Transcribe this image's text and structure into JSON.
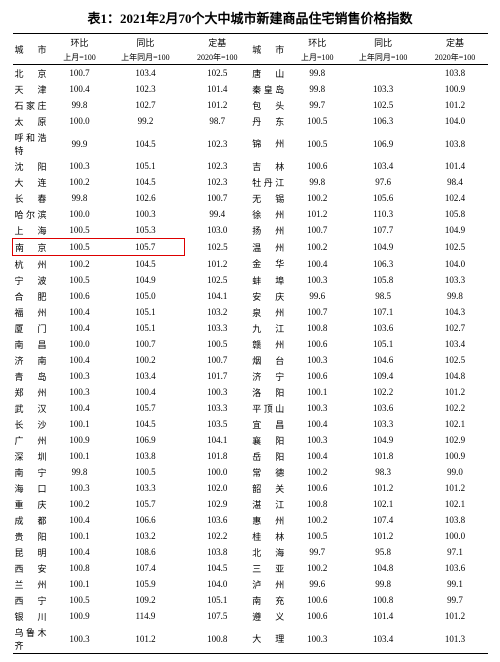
{
  "title": "表1：2021年2月70个大中城市新建商品住宅销售价格指数",
  "headers": {
    "city": "城市",
    "mom": "环比",
    "mom_sub": "上月=100",
    "yoy": "同比",
    "yoy_sub": "上年同月=100",
    "base": "定基",
    "base_sub": "2020年=100"
  },
  "highlight_city": "南京",
  "colors": {
    "highlight": "#d00",
    "text": "#000",
    "bg": "#ffffff"
  },
  "font": {
    "family": "SimSun",
    "title_size": 13,
    "body_size": 9
  },
  "rows": [
    {
      "l": {
        "c": "北京",
        "m": "100.7",
        "y": "103.4",
        "b": "102.5"
      },
      "r": {
        "c": "唐山",
        "m": "99.8",
        "y": "",
        "b": "103.8"
      }
    },
    {
      "l": {
        "c": "天津",
        "m": "100.4",
        "y": "102.3",
        "b": "101.4"
      },
      "r": {
        "c": "秦皇岛",
        "m": "99.8",
        "y": "103.3",
        "b": "100.9"
      }
    },
    {
      "l": {
        "c": "石家庄",
        "m": "99.8",
        "y": "102.7",
        "b": "101.2"
      },
      "r": {
        "c": "包头",
        "m": "99.7",
        "y": "102.5",
        "b": "101.2"
      }
    },
    {
      "l": {
        "c": "太原",
        "m": "100.0",
        "y": "99.2",
        "b": "98.7"
      },
      "r": {
        "c": "丹东",
        "m": "100.5",
        "y": "106.3",
        "b": "104.0"
      }
    },
    {
      "l": {
        "c": "呼和浩特",
        "m": "99.9",
        "y": "104.5",
        "b": "102.3"
      },
      "r": {
        "c": "锦州",
        "m": "100.5",
        "y": "106.9",
        "b": "103.8"
      }
    },
    {
      "l": {
        "c": "沈阳",
        "m": "100.3",
        "y": "105.1",
        "b": "102.3"
      },
      "r": {
        "c": "吉林",
        "m": "100.6",
        "y": "103.4",
        "b": "101.4"
      }
    },
    {
      "l": {
        "c": "大连",
        "m": "100.2",
        "y": "104.5",
        "b": "102.3"
      },
      "r": {
        "c": "牡丹江",
        "m": "99.8",
        "y": "97.6",
        "b": "98.4"
      }
    },
    {
      "l": {
        "c": "长春",
        "m": "99.8",
        "y": "102.6",
        "b": "100.7"
      },
      "r": {
        "c": "无锡",
        "m": "100.2",
        "y": "105.6",
        "b": "102.4"
      }
    },
    {
      "l": {
        "c": "哈尔滨",
        "m": "100.0",
        "y": "100.3",
        "b": "99.4"
      },
      "r": {
        "c": "徐州",
        "m": "101.2",
        "y": "110.3",
        "b": "105.8"
      }
    },
    {
      "l": {
        "c": "上海",
        "m": "100.5",
        "y": "105.3",
        "b": "103.0"
      },
      "r": {
        "c": "扬州",
        "m": "100.7",
        "y": "107.7",
        "b": "104.9"
      }
    },
    {
      "l": {
        "c": "南京",
        "m": "100.5",
        "y": "105.7",
        "b": "102.5"
      },
      "r": {
        "c": "温州",
        "m": "100.2",
        "y": "104.9",
        "b": "102.5"
      }
    },
    {
      "l": {
        "c": "杭州",
        "m": "100.2",
        "y": "104.5",
        "b": "101.2"
      },
      "r": {
        "c": "金华",
        "m": "100.4",
        "y": "106.3",
        "b": "104.0"
      }
    },
    {
      "l": {
        "c": "宁波",
        "m": "100.5",
        "y": "104.9",
        "b": "102.5"
      },
      "r": {
        "c": "蚌埠",
        "m": "100.3",
        "y": "105.8",
        "b": "103.3"
      }
    },
    {
      "l": {
        "c": "合肥",
        "m": "100.6",
        "y": "105.0",
        "b": "104.1"
      },
      "r": {
        "c": "安庆",
        "m": "99.6",
        "y": "98.5",
        "b": "99.8"
      }
    },
    {
      "l": {
        "c": "福州",
        "m": "100.4",
        "y": "105.1",
        "b": "103.2"
      },
      "r": {
        "c": "泉州",
        "m": "100.7",
        "y": "107.1",
        "b": "104.3"
      }
    },
    {
      "l": {
        "c": "厦门",
        "m": "100.4",
        "y": "105.1",
        "b": "103.3"
      },
      "r": {
        "c": "九江",
        "m": "100.8",
        "y": "103.6",
        "b": "102.7"
      }
    },
    {
      "l": {
        "c": "南昌",
        "m": "100.0",
        "y": "100.7",
        "b": "100.5"
      },
      "r": {
        "c": "赣州",
        "m": "100.6",
        "y": "105.1",
        "b": "103.4"
      }
    },
    {
      "l": {
        "c": "济南",
        "m": "100.4",
        "y": "100.2",
        "b": "100.7"
      },
      "r": {
        "c": "烟台",
        "m": "100.3",
        "y": "104.6",
        "b": "102.5"
      }
    },
    {
      "l": {
        "c": "青岛",
        "m": "100.3",
        "y": "103.4",
        "b": "101.7"
      },
      "r": {
        "c": "济宁",
        "m": "100.6",
        "y": "109.4",
        "b": "104.8"
      }
    },
    {
      "l": {
        "c": "郑州",
        "m": "100.3",
        "y": "100.4",
        "b": "100.3"
      },
      "r": {
        "c": "洛阳",
        "m": "100.1",
        "y": "102.2",
        "b": "101.2"
      }
    },
    {
      "l": {
        "c": "武汉",
        "m": "100.4",
        "y": "105.7",
        "b": "103.3"
      },
      "r": {
        "c": "平顶山",
        "m": "100.3",
        "y": "103.6",
        "b": "102.2"
      }
    },
    {
      "l": {
        "c": "长沙",
        "m": "100.1",
        "y": "104.5",
        "b": "103.5"
      },
      "r": {
        "c": "宜昌",
        "m": "100.4",
        "y": "103.3",
        "b": "102.1"
      }
    },
    {
      "l": {
        "c": "广州",
        "m": "100.9",
        "y": "106.9",
        "b": "104.1"
      },
      "r": {
        "c": "襄阳",
        "m": "100.3",
        "y": "104.9",
        "b": "102.9"
      }
    },
    {
      "l": {
        "c": "深圳",
        "m": "100.1",
        "y": "103.8",
        "b": "101.8"
      },
      "r": {
        "c": "岳阳",
        "m": "100.4",
        "y": "101.8",
        "b": "100.9"
      }
    },
    {
      "l": {
        "c": "南宁",
        "m": "99.8",
        "y": "100.5",
        "b": "100.0"
      },
      "r": {
        "c": "常德",
        "m": "100.2",
        "y": "98.3",
        "b": "99.0"
      }
    },
    {
      "l": {
        "c": "海口",
        "m": "100.3",
        "y": "103.3",
        "b": "102.0"
      },
      "r": {
        "c": "韶关",
        "m": "100.6",
        "y": "101.2",
        "b": "101.2"
      }
    },
    {
      "l": {
        "c": "重庆",
        "m": "100.2",
        "y": "105.7",
        "b": "102.9"
      },
      "r": {
        "c": "湛江",
        "m": "100.8",
        "y": "102.1",
        "b": "102.1"
      }
    },
    {
      "l": {
        "c": "成都",
        "m": "100.4",
        "y": "106.6",
        "b": "103.6"
      },
      "r": {
        "c": "惠州",
        "m": "100.2",
        "y": "107.4",
        "b": "103.8"
      }
    },
    {
      "l": {
        "c": "贵阳",
        "m": "100.1",
        "y": "103.2",
        "b": "102.2"
      },
      "r": {
        "c": "桂林",
        "m": "100.5",
        "y": "101.2",
        "b": "100.0"
      }
    },
    {
      "l": {
        "c": "昆明",
        "m": "100.4",
        "y": "108.6",
        "b": "103.8"
      },
      "r": {
        "c": "北海",
        "m": "99.7",
        "y": "95.8",
        "b": "97.1"
      }
    },
    {
      "l": {
        "c": "西安",
        "m": "100.8",
        "y": "107.4",
        "b": "104.5"
      },
      "r": {
        "c": "三亚",
        "m": "100.2",
        "y": "104.8",
        "b": "103.6"
      }
    },
    {
      "l": {
        "c": "兰州",
        "m": "100.1",
        "y": "105.9",
        "b": "104.0"
      },
      "r": {
        "c": "泸州",
        "m": "99.6",
        "y": "99.8",
        "b": "99.1"
      }
    },
    {
      "l": {
        "c": "西宁",
        "m": "100.5",
        "y": "109.2",
        "b": "105.1"
      },
      "r": {
        "c": "南充",
        "m": "100.6",
        "y": "100.8",
        "b": "99.7"
      }
    },
    {
      "l": {
        "c": "银川",
        "m": "100.9",
        "y": "114.9",
        "b": "107.5"
      },
      "r": {
        "c": "遵义",
        "m": "100.6",
        "y": "101.4",
        "b": "101.2"
      }
    },
    {
      "l": {
        "c": "乌鲁木齐",
        "m": "100.3",
        "y": "101.2",
        "b": "100.8"
      },
      "r": {
        "c": "大理",
        "m": "100.3",
        "y": "103.4",
        "b": "101.3"
      }
    }
  ]
}
